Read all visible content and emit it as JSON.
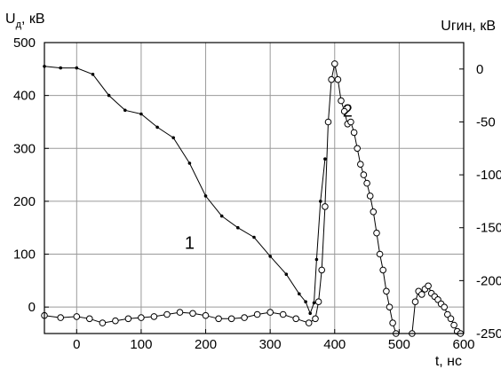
{
  "chart_data": {
    "type": "scatter",
    "title": "",
    "xlabel": "t, нс",
    "ylabel_left_main": "U",
    "ylabel_left_sub": "д",
    "ylabel_left_unit": ", кВ",
    "ylabel_right": "Uгин, кВ",
    "xlim": [
      -50,
      600
    ],
    "ylim_left": [
      -50,
      500
    ],
    "ylim_right": [
      -250,
      25
    ],
    "grid": true,
    "x_ticks": [
      0,
      100,
      200,
      300,
      400,
      500,
      600
    ],
    "y_left_ticks": [
      0,
      100,
      200,
      300,
      400,
      500
    ],
    "y_right_ticks": [
      0,
      -50,
      -100,
      -150,
      -200,
      -250
    ],
    "annotations": [
      {
        "text": "1",
        "x": 175,
        "y": 110
      },
      {
        "text": "2",
        "x": 420,
        "y": 360
      }
    ],
    "series": [
      {
        "marker": "filled",
        "line": true,
        "axis": "left",
        "x": [
          -50,
          -25,
          0,
          25,
          50,
          75,
          100,
          125,
          150,
          175,
          200,
          225,
          250,
          275,
          300,
          325,
          345,
          355,
          362,
          368,
          372,
          378,
          385
        ],
        "y": [
          455,
          452,
          452,
          440,
          400,
          372,
          365,
          340,
          320,
          272,
          210,
          172,
          150,
          132,
          96,
          62,
          25,
          10,
          -12,
          8,
          90,
          200,
          280
        ]
      },
      {
        "marker": "open",
        "line": true,
        "axis": "right",
        "x": [
          -50,
          -25,
          0,
          20,
          40,
          60,
          80,
          100,
          120,
          140,
          160,
          180,
          200,
          220,
          240,
          260,
          280,
          300,
          320,
          340,
          360,
          370,
          375,
          380,
          385,
          390,
          395,
          400,
          405,
          410,
          415,
          420,
          425,
          430,
          435,
          440,
          445,
          450,
          455,
          460,
          465,
          470,
          475,
          480,
          485,
          490,
          495,
          520,
          525,
          530,
          535,
          540,
          545,
          550,
          555,
          560,
          565,
          570,
          575,
          580,
          585,
          590,
          595
        ],
        "y": [
          -233,
          -235,
          -234,
          -236,
          -240,
          -238,
          -236,
          -235,
          -234,
          -232,
          -230,
          -231,
          -233,
          -236,
          -236,
          -235,
          -232,
          -230,
          -232,
          -236,
          -240,
          -236,
          -220,
          -190,
          -130,
          -50,
          -10,
          5,
          -10,
          -30,
          -40,
          -52,
          -50,
          -60,
          -75,
          -90,
          -100,
          -108,
          -120,
          -135,
          -155,
          -175,
          -190,
          -210,
          -225,
          -240,
          -255,
          -255,
          -220,
          -210,
          -213,
          -208,
          -205,
          -212,
          -215,
          -218,
          -222,
          -225,
          -232,
          -236,
          -242,
          -248,
          -255
        ]
      }
    ]
  }
}
